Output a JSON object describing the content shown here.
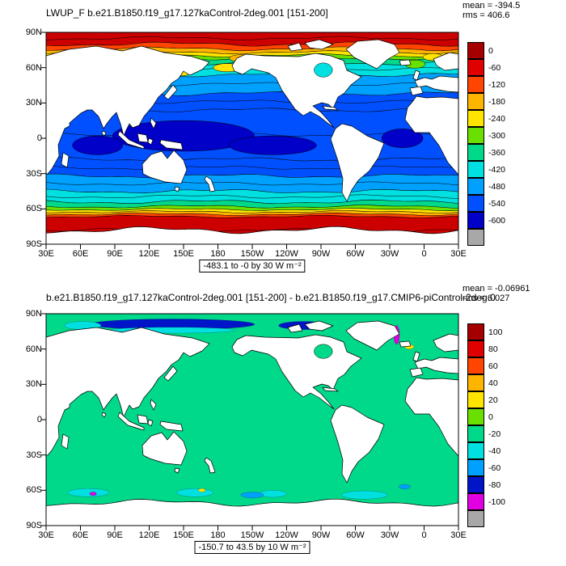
{
  "chart_data": [
    {
      "type": "heatmap",
      "variant": "filled-contour-global-map",
      "title": "LWUP_F b.e21.B1850.f19_g17.127kaControl-2deg.001 [151-200]",
      "mean_text": "mean = -394.5",
      "rms_text": "rms = 406.6",
      "contour_range_text": "-483.1 to -0 by 30  W m⁻²",
      "units": "W m⁻²",
      "data_min": -483.1,
      "data_max": 0,
      "contour_interval": 30,
      "colorbar": {
        "labels": [
          "0",
          "-60",
          "-120",
          "-180",
          "-240",
          "-300",
          "-360",
          "-420",
          "-480",
          "-540",
          "-600"
        ],
        "colors": [
          "#a50000",
          "#e00000",
          "#ff4500",
          "#ffb400",
          "#ffe400",
          "#69e000",
          "#00d88a",
          "#00e0e0",
          "#00a0ff",
          "#0050ff",
          "#0000c8",
          "#a8a8a8"
        ]
      },
      "axes": {
        "lat_labels": [
          "90N",
          "60N",
          "30N",
          "0",
          "30S",
          "60S",
          "90S"
        ],
        "lon_labels": [
          "30E",
          "60E",
          "90E",
          "120E",
          "150E",
          "180",
          "150W",
          "120W",
          "90W",
          "60W",
          "30W",
          "0",
          "30E"
        ]
      },
      "field": {
        "has_contour_lines": true,
        "antarctic_ice_edge_lat": -78,
        "zonal_bands": [
          {
            "from": 90,
            "to": 80,
            "color": "#cc0000"
          },
          {
            "from": 80,
            "to": 76,
            "color": "#ff4500"
          },
          {
            "from": 76,
            "to": 73,
            "color": "#ffb400"
          },
          {
            "from": 73,
            "to": 70.5,
            "color": "#ffe400"
          },
          {
            "from": 70.5,
            "to": 68,
            "color": "#69e000"
          },
          {
            "from": 68,
            "to": 64,
            "color": "#00d88a"
          },
          {
            "from": 64,
            "to": 54,
            "color": "#00e0e0"
          },
          {
            "from": 54,
            "to": 38,
            "color": "#00a0ff"
          },
          {
            "from": 38,
            "to": 24,
            "color": "#0050ff"
          },
          {
            "from": 24,
            "to": -18,
            "color": "#0050ff"
          },
          {
            "from": -18,
            "to": -32,
            "color": "#0050ff"
          },
          {
            "from": -32,
            "to": -45,
            "color": "#00a0ff"
          },
          {
            "from": -45,
            "to": -54,
            "color": "#00e0e0"
          },
          {
            "from": -54,
            "to": -58,
            "color": "#00d88a"
          },
          {
            "from": -58,
            "to": -60.5,
            "color": "#69e000"
          },
          {
            "from": -60.5,
            "to": -62.5,
            "color": "#ffe400"
          },
          {
            "from": -62.5,
            "to": -64.5,
            "color": "#ffb400"
          },
          {
            "from": -64.5,
            "to": -66.5,
            "color": "#ff4500"
          },
          {
            "from": -66.5,
            "to": -90,
            "color": "#cc0000"
          }
        ],
        "blobs": [
          {
            "lon": 150,
            "lat": 2,
            "rlon": 62,
            "rlat": 13,
            "color": "#0000c8"
          },
          {
            "lon": 228,
            "lat": -6,
            "rlon": 38,
            "rlat": 8,
            "color": "#0000c8"
          },
          {
            "lon": 75,
            "lat": -6,
            "rlon": 22,
            "rlat": 8,
            "color": "#0000c8"
          },
          {
            "lon": 341,
            "lat": 0,
            "rlon": 18,
            "rlat": 8,
            "color": "#0000c8"
          },
          {
            "lon": 188,
            "lat": 60,
            "rlon": 12,
            "rlat": 3.5,
            "color": "#ffe400"
          },
          {
            "lon": 148,
            "lat": 56,
            "rlon": 8,
            "rlat": 3,
            "color": "#ffe400"
          },
          {
            "lon": 352,
            "lat": 63,
            "rlon": 9,
            "rlat": 3.5,
            "color": "#69e000"
          },
          {
            "lon": 8,
            "lat": 69,
            "rlon": 9,
            "rlat": 3,
            "color": "#ffe400"
          },
          {
            "lon": 200,
            "lat": 68,
            "rlon": 10,
            "rlat": 3,
            "color": "#ffb400"
          }
        ]
      }
    },
    {
      "type": "heatmap",
      "variant": "filled-contour-global-map-difference",
      "title": "b.e21.B1850.f19_g17.127kaControl-2deg.001 [151-200] - b.e21.B1850.f19_g17.CMIP6-piControl-2deg.0",
      "mean_text": "mean = -0.06961",
      "rms_text": "rms = 6.027",
      "contour_range_text": "-150.7 to 43.5 by 10  W m⁻²",
      "units": "W m⁻²",
      "data_min": -150.7,
      "data_max": 43.5,
      "contour_interval": 10,
      "colorbar": {
        "labels": [
          "100",
          "80",
          "60",
          "40",
          "20",
          "0",
          "-20",
          "-40",
          "-60",
          "-80",
          "-100"
        ],
        "colors": [
          "#a50000",
          "#e00000",
          "#ff4500",
          "#ffb400",
          "#ffe400",
          "#69e000",
          "#00d88a",
          "#00e0e0",
          "#00a0ff",
          "#0014c8",
          "#e100e1",
          "#a8a8a8"
        ]
      },
      "axes": {
        "lat_labels": [
          "90N",
          "60N",
          "30N",
          "0",
          "30S",
          "60S",
          "90S"
        ],
        "lon_labels": [
          "30E",
          "60E",
          "90E",
          "120E",
          "150E",
          "180",
          "150W",
          "120W",
          "90W",
          "60W",
          "30W",
          "0",
          "30E"
        ]
      },
      "field": {
        "has_contour_lines": false,
        "antarctic_ice_edge_lat": -70.5,
        "zonal_bands": [
          {
            "from": 90,
            "to": -90,
            "color": "#00d88a"
          }
        ],
        "blobs": [
          {
            "lon": 140,
            "lat": 81,
            "rlon": 72,
            "rlat": 4.5,
            "color": "#0014c8"
          },
          {
            "lon": 255,
            "lat": 80,
            "rlon": 22,
            "rlat": 3.5,
            "color": "#0014c8"
          },
          {
            "lon": 140,
            "lat": 76,
            "rlon": 55,
            "rlat": 2.5,
            "color": "#00e0e0"
          },
          {
            "lon": 62,
            "lat": 80,
            "rlon": 16,
            "rlat": 3.5,
            "color": "#00e0e0"
          },
          {
            "lon": 336,
            "lat": 72,
            "rlon": 2.5,
            "rlat": 8,
            "color": "#e100e1"
          },
          {
            "lon": 347,
            "lat": 62,
            "rlon": 4,
            "rlat": 2,
            "color": "#ffe400"
          },
          {
            "lon": 67,
            "lat": -62,
            "rlon": 18,
            "rlat": 3.5,
            "color": "#00e0e0"
          },
          {
            "lon": 160,
            "lat": -62,
            "rlon": 16,
            "rlat": 3.5,
            "color": "#00e0e0"
          },
          {
            "lon": 228,
            "lat": -63,
            "rlon": 12,
            "rlat": 3,
            "color": "#00e0e0"
          },
          {
            "lon": 308,
            "lat": -64,
            "rlon": 20,
            "rlat": 3.5,
            "color": "#00e0e0"
          },
          {
            "lon": 343,
            "lat": -57,
            "rlon": 5,
            "rlat": 2,
            "color": "#00a0ff"
          },
          {
            "lon": 71,
            "lat": -63,
            "rlon": 3,
            "rlat": 1.5,
            "color": "#e100e1"
          },
          {
            "lon": 166,
            "lat": -60,
            "rlon": 3,
            "rlat": 1.5,
            "color": "#ffe400"
          },
          {
            "lon": 210,
            "lat": -64,
            "rlon": 10,
            "rlat": 2.5,
            "color": "#00a0ff"
          }
        ]
      }
    }
  ]
}
